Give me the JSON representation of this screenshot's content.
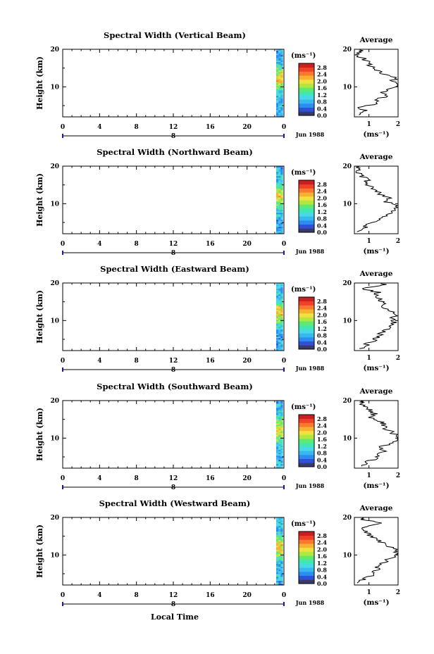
{
  "colorbar_unit": "(ms⁻¹)",
  "colorbar_ticks": [
    "2.8",
    "2.4",
    "2.0",
    "1.6",
    "1.2",
    "0.8",
    "0.4",
    "0.0"
  ],
  "colorbar_ticks_panel3": [
    "2.8",
    "2.4",
    "2.0",
    "1.6",
    "1.2",
    "0.8",
    "0.4",
    "0.0"
  ],
  "date_label": "Jun 1988",
  "day_label": "8",
  "avg_title": "Average",
  "avg_unit": "(ms⁻¹)",
  "palette": [
    "#3a3a6a",
    "#3050d8",
    "#2c8cf0",
    "#38b8f0",
    "#48d8e8",
    "#40e8b0",
    "#60e870",
    "#b0e840",
    "#f0e040",
    "#f8b030",
    "#f87830",
    "#f04028",
    "#c82020"
  ],
  "chart_data": [
    {
      "type": "heatmap",
      "title": "Spectral Width (Vertical Beam)",
      "xlabel": "",
      "ylabel": "Height (km)",
      "x_ticks": [
        "0",
        "4",
        "8",
        "12",
        "16",
        "20",
        "0"
      ],
      "y_ticks": [
        "20",
        "10"
      ],
      "xlim": [
        0,
        24
      ],
      "ylim": [
        2,
        20
      ],
      "colorbar": {
        "vmin": 0.0,
        "vmax": 2.8
      },
      "average_profile": {
        "xlim": [
          0.5,
          2.0
        ],
        "x_ticks": [
          "1",
          "2"
        ],
        "y_ticks": [
          "20",
          "10"
        ],
        "height_km": [
          2.5,
          3.5,
          4.5,
          5.5,
          6.5,
          7.5,
          8.5,
          9.5,
          10.5,
          11.5,
          12.5,
          13.5,
          14.5,
          15.5,
          16.5,
          17.5,
          18.5,
          19.5
        ],
        "width": [
          0.6,
          0.9,
          0.7,
          1.3,
          1.2,
          1.6,
          1.4,
          1.7,
          2.0,
          1.8,
          1.9,
          1.4,
          1.3,
          1.0,
          1.1,
          0.8,
          0.6,
          0.7
        ]
      }
    },
    {
      "type": "heatmap",
      "title": "Spectral Width (Northward Beam)",
      "xlabel": "",
      "ylabel": "Height (km)",
      "x_ticks": [
        "0",
        "4",
        "8",
        "12",
        "16",
        "20",
        "0"
      ],
      "y_ticks": [
        "20",
        "10"
      ],
      "xlim": [
        0,
        24
      ],
      "ylim": [
        2,
        20
      ],
      "colorbar": {
        "vmin": 0.0,
        "vmax": 2.8
      },
      "average_profile": {
        "xlim": [
          0.5,
          2.0
        ],
        "x_ticks": [
          "1",
          "2"
        ],
        "y_ticks": [
          "20",
          "10"
        ],
        "height_km": [
          2.5,
          3.5,
          4.5,
          5.5,
          6.5,
          7.5,
          8.5,
          9.5,
          10.5,
          11.5,
          12.5,
          13.5,
          14.5,
          15.5,
          16.5,
          17.5,
          18.5,
          19.5
        ],
        "width": [
          0.7,
          0.8,
          1.0,
          1.4,
          1.5,
          1.7,
          1.9,
          2.0,
          1.6,
          1.7,
          1.4,
          1.3,
          1.1,
          0.9,
          1.0,
          0.7,
          0.6,
          0.6
        ]
      }
    },
    {
      "type": "heatmap",
      "title": "Spectral Width (Eastward Beam)",
      "xlabel": "",
      "ylabel": "Height (km)",
      "x_ticks": [
        "0",
        "4",
        "8",
        "12",
        "16",
        "20",
        "0"
      ],
      "y_ticks": [
        "20",
        "10"
      ],
      "xlim": [
        0,
        24
      ],
      "ylim": [
        2,
        20
      ],
      "colorbar": {
        "vmin": 0.0,
        "vmax": 2.8
      },
      "average_profile": {
        "xlim": [
          0.5,
          2.0
        ],
        "x_ticks": [
          "1",
          "2"
        ],
        "y_ticks": [
          "20",
          "10"
        ],
        "height_km": [
          2.5,
          3.5,
          4.5,
          5.5,
          6.5,
          7.5,
          8.5,
          9.5,
          10.5,
          11.5,
          12.5,
          13.5,
          14.5,
          15.5,
          16.5,
          17.5,
          18.5,
          19.5
        ],
        "width": [
          0.7,
          0.9,
          1.1,
          1.3,
          1.4,
          1.6,
          1.7,
          1.9,
          1.8,
          2.0,
          1.7,
          1.5,
          1.6,
          1.4,
          1.2,
          1.3,
          0.8,
          1.5
        ]
      }
    },
    {
      "type": "heatmap",
      "title": "Spectral Width (Southward Beam)",
      "xlabel": "",
      "ylabel": "Height (km)",
      "x_ticks": [
        "0",
        "4",
        "8",
        "12",
        "16",
        "20",
        "0"
      ],
      "y_ticks": [
        "20",
        "10"
      ],
      "xlim": [
        0,
        24
      ],
      "ylim": [
        2,
        20
      ],
      "colorbar": {
        "vmin": 0.0,
        "vmax": 2.8
      },
      "average_profile": {
        "xlim": [
          0.5,
          2.0
        ],
        "x_ticks": [
          "1",
          "2"
        ],
        "y_ticks": [
          "20",
          "10"
        ],
        "height_km": [
          2.5,
          3.5,
          4.5,
          5.5,
          6.5,
          7.5,
          8.5,
          9.5,
          10.5,
          11.5,
          12.5,
          13.5,
          14.5,
          15.5,
          16.5,
          17.5,
          18.5,
          19.5
        ],
        "width": [
          0.7,
          0.9,
          1.2,
          1.3,
          1.5,
          1.4,
          1.7,
          1.9,
          2.0,
          1.8,
          1.6,
          1.5,
          1.4,
          1.1,
          1.2,
          1.0,
          0.8,
          0.7
        ]
      }
    },
    {
      "type": "heatmap",
      "title": "Spectral Width (Westward Beam)",
      "xlabel": "Local Time",
      "ylabel": "Height (km)",
      "x_ticks": [
        "0",
        "4",
        "8",
        "12",
        "16",
        "20",
        "0"
      ],
      "y_ticks": [
        "20",
        "10"
      ],
      "xlim": [
        0,
        24
      ],
      "ylim": [
        2,
        20
      ],
      "colorbar": {
        "vmin": 0.0,
        "vmax": 2.8
      },
      "average_profile": {
        "xlim": [
          0.5,
          2.0
        ],
        "x_ticks": [
          "1",
          "2"
        ],
        "y_ticks": [
          "20",
          "10"
        ],
        "height_km": [
          2.5,
          3.5,
          4.5,
          5.5,
          6.5,
          7.5,
          8.5,
          9.5,
          10.5,
          11.5,
          12.5,
          13.5,
          14.5,
          15.5,
          16.5,
          17.5,
          18.5,
          19.5
        ],
        "width": [
          0.7,
          0.8,
          1.1,
          1.2,
          1.3,
          1.4,
          1.6,
          1.8,
          2.0,
          1.9,
          1.6,
          1.4,
          1.2,
          1.0,
          0.9,
          0.8,
          1.4,
          0.7
        ]
      }
    }
  ]
}
